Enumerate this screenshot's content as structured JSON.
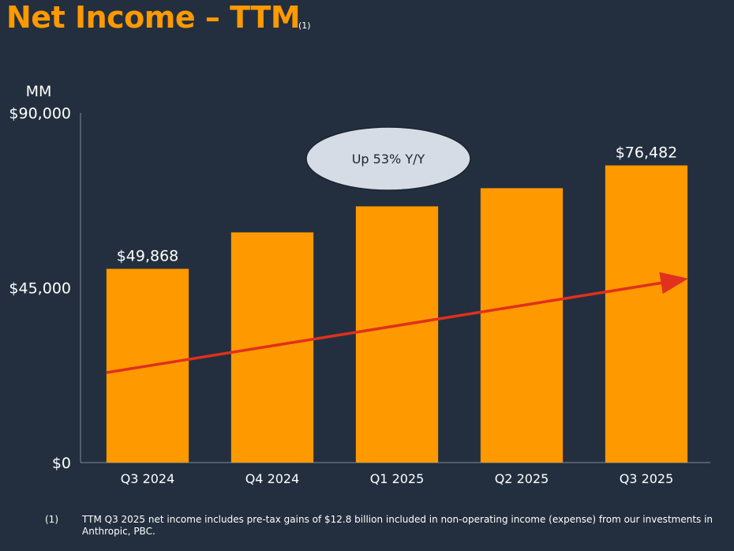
{
  "title": "Net Income – TTM",
  "title_note": "(1)",
  "chart_data": {
    "type": "bar",
    "title": "Net Income – TTM",
    "ylabel": "MM",
    "ylim": [
      0,
      90000
    ],
    "yticks": [
      0,
      45000,
      90000
    ],
    "ytick_labels": [
      "$0",
      "$45,000",
      "$90,000"
    ],
    "categories": [
      "Q3 2024",
      "Q4 2024",
      "Q1 2025",
      "Q2 2025",
      "Q3 2025"
    ],
    "values": [
      49868,
      59248,
      65944,
      70623,
      76482
    ],
    "data_labels": [
      "$49,868",
      "",
      "",
      "",
      "$76,482"
    ],
    "annotation": "Up 53% Y/Y",
    "trend_arrow": true,
    "colors": {
      "bar": "#ff9900",
      "arrow": "#e0301e",
      "axis": "#7f8c9a",
      "callout_fill": "#d6dce5",
      "background": "#232f3e"
    }
  },
  "footnote": {
    "marker": "(1)",
    "text": "TTM Q3 2025 net income includes pre-tax gains of $12.8 billion included in non-operating income (expense) from our investments in Anthropic, PBC."
  }
}
